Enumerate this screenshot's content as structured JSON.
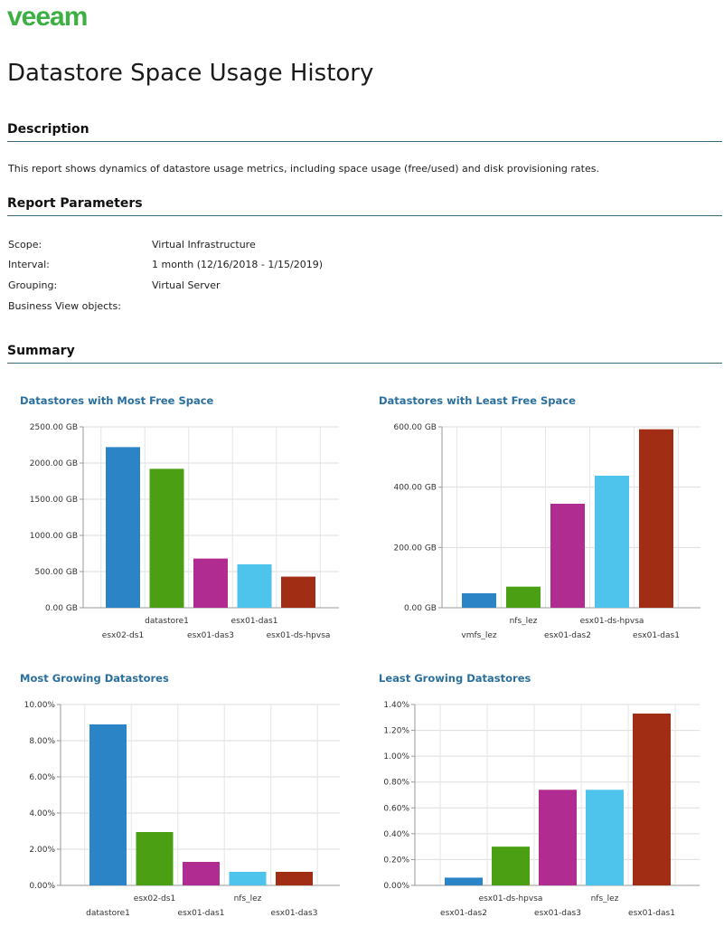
{
  "brand": "veeam",
  "title": "Datastore Space Usage History",
  "sections": {
    "description": "Description",
    "parameters": "Report Parameters",
    "summary": "Summary"
  },
  "description_text": "This report shows dynamics of datastore usage metrics, including space usage (free/used) and disk provisioning rates.",
  "params": [
    {
      "label": "Scope:",
      "value": "Virtual Infrastructure"
    },
    {
      "label": "Interval:",
      "value": "1 month (12/16/2018 - 1/15/2019)"
    },
    {
      "label": "Grouping:",
      "value": "Virtual Server"
    },
    {
      "label": "Business View objects:",
      "value": ""
    }
  ],
  "colors": [
    "#2a84c6",
    "#4aa012",
    "#b12c90",
    "#4ec3ec",
    "#a02d14"
  ],
  "chart_data": [
    {
      "type": "bar",
      "title": "Datastores with Most Free Space",
      "categories": [
        "esx02-ds1",
        "datastore1",
        "esx01-das3",
        "esx01-das1",
        "esx01-ds-hpvsa"
      ],
      "values": [
        2220,
        1920,
        680,
        600,
        430
      ],
      "ylim": [
        0,
        2500
      ],
      "yticks": [
        "0.00 GB",
        "500.00 GB",
        "1000.00 GB",
        "1500.00 GB",
        "2000.00 GB",
        "2500.00 GB"
      ],
      "tick_values": [
        0,
        500,
        1000,
        1500,
        2000,
        2500
      ],
      "grid": true
    },
    {
      "type": "bar",
      "title": "Datastores with Least Free Space",
      "categories": [
        "vmfs_lez",
        "nfs_lez",
        "esx01-das2",
        "esx01-ds-hpvsa",
        "esx01-das1"
      ],
      "values": [
        48,
        70,
        345,
        438,
        592
      ],
      "ylim": [
        0,
        600
      ],
      "yticks": [
        "0.00 GB",
        "200.00 GB",
        "400.00 GB",
        "600.00 GB"
      ],
      "tick_values": [
        0,
        200,
        400,
        600
      ],
      "grid": true
    },
    {
      "type": "bar",
      "title": "Most Growing Datastores",
      "categories": [
        "datastore1",
        "esx02-ds1",
        "esx01-das1",
        "nfs_lez",
        "esx01-das3"
      ],
      "values": [
        8.9,
        2.95,
        1.3,
        0.75,
        0.75
      ],
      "ylim": [
        0,
        10
      ],
      "yticks": [
        "0.00%",
        "2.00%",
        "4.00%",
        "6.00%",
        "8.00%",
        "10.00%"
      ],
      "tick_values": [
        0,
        2,
        4,
        6,
        8,
        10
      ],
      "grid": true
    },
    {
      "type": "bar",
      "title": "Least Growing Datastores",
      "categories": [
        "esx01-das2",
        "esx01-ds-hpvsa",
        "esx01-das3",
        "nfs_lez",
        "esx01-das1"
      ],
      "values": [
        0.06,
        0.3,
        0.74,
        0.74,
        1.33
      ],
      "ylim": [
        0,
        1.4
      ],
      "yticks": [
        "0.00%",
        "0.20%",
        "0.40%",
        "0.60%",
        "0.80%",
        "1.00%",
        "1.20%",
        "1.40%"
      ],
      "tick_values": [
        0,
        0.2,
        0.4,
        0.6,
        0.8,
        1.0,
        1.2,
        1.4
      ],
      "grid": true
    }
  ]
}
